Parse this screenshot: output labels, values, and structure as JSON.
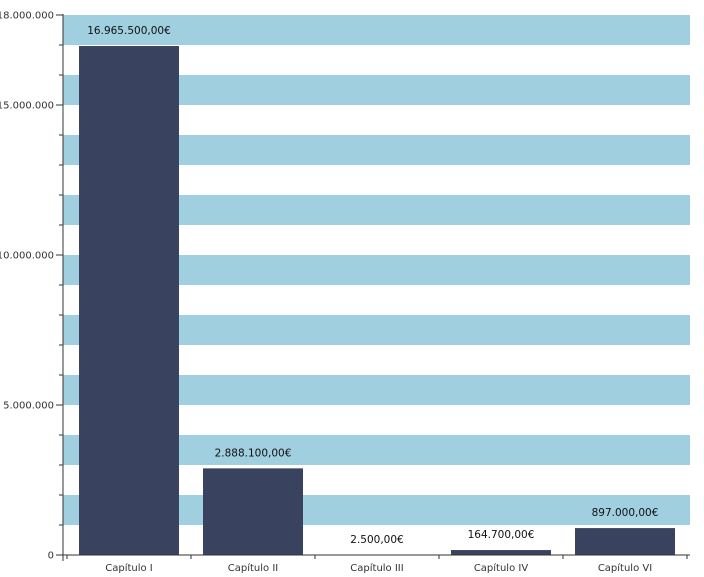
{
  "chart_data": {
    "type": "bar",
    "title": "",
    "xlabel": "",
    "ylabel": "",
    "categories": [
      "Capítulo I",
      "Capítulo II",
      "Capítulo III",
      "Capítulo IV",
      "Capítulo VI"
    ],
    "values": [
      16965500,
      2888100,
      2500,
      164700,
      897000
    ],
    "data_labels": [
      "16.965.500,00€",
      "2.888.100,00€",
      "2.500,00€",
      "164.700,00€",
      "897.000,00€"
    ],
    "ylim": [
      0,
      18000000
    ],
    "y_ticks": [
      0,
      5000000,
      10000000,
      15000000,
      18000000
    ],
    "y_tick_labels": [
      "0",
      "5.000.000",
      "10.000.000",
      "15.000.000",
      "18.000.000"
    ],
    "y_minor_step": 1000000,
    "grid": "alternating horizontal bands",
    "legend": "none",
    "colors": {
      "bar": "#39425e",
      "band": "#a0cfdf",
      "axis": "#333333"
    }
  }
}
